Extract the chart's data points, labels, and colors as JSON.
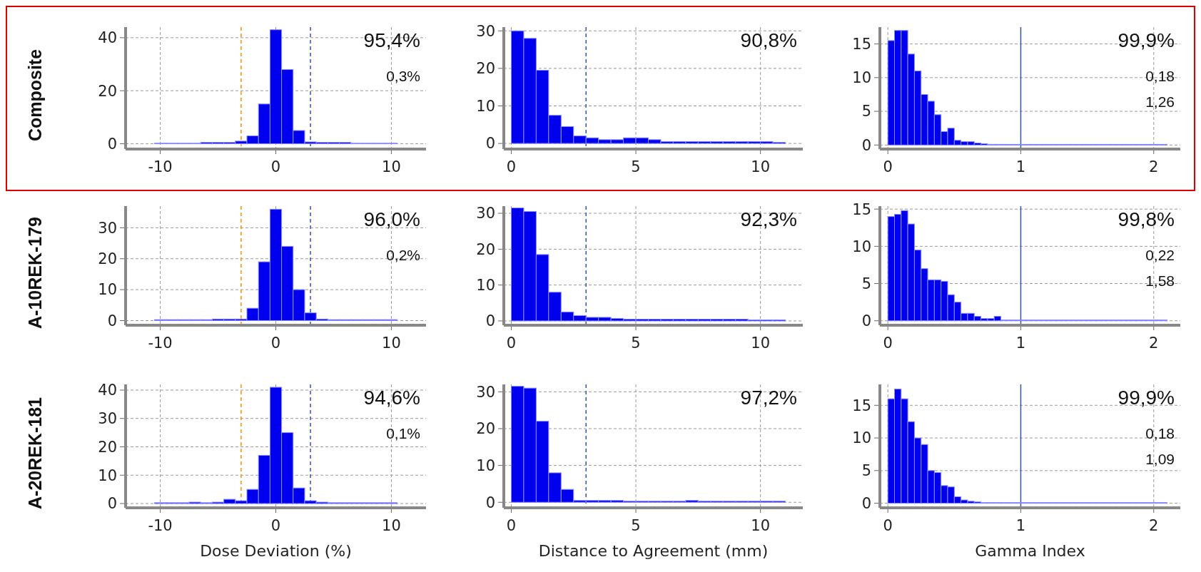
{
  "chart_data": [
    {
      "type": "histogram",
      "ylabel": "Composite",
      "bins": [
        -10.5,
        -9.5,
        -8.5,
        -7.5,
        -6.5,
        -5.5,
        -4.5,
        -3.5,
        -2.5,
        -1.5,
        -0.5,
        0.5,
        1.5,
        2.5,
        3.5,
        4.5,
        5.5,
        6.5,
        7.5,
        8.5,
        9.5,
        10.5
      ],
      "values": [
        0.2,
        0.2,
        0.2,
        0.2,
        0.5,
        0.5,
        0.5,
        1,
        3,
        15,
        43,
        28,
        5,
        0.7,
        0.5,
        0.5,
        0.5,
        0.2,
        0.2,
        0.2,
        0.2
      ],
      "color": "#0000ee",
      "xlim": [
        -13,
        13
      ],
      "xticks": [
        -10,
        0,
        10
      ],
      "ylim": [
        -2,
        44
      ],
      "yticks": [
        0,
        20,
        40
      ],
      "grid": true,
      "ref_lines": [
        {
          "axis": "x",
          "value": -3,
          "color": "#ff8c00",
          "line_style": "dashed"
        },
        {
          "axis": "x",
          "value": 3,
          "color": "#3355aa",
          "line_style": "dashed"
        }
      ],
      "annotations": [
        "95,4%",
        "0,3%"
      ]
    },
    {
      "type": "histogram",
      "bins": [
        0,
        0.5,
        1,
        1.5,
        2,
        2.5,
        3,
        3.5,
        4,
        4.5,
        5,
        5.5,
        6,
        6.5,
        7,
        7.5,
        8,
        8.5,
        9,
        9.5,
        10,
        10.5,
        11
      ],
      "values": [
        30,
        28,
        19.5,
        7.5,
        4.5,
        2,
        1.5,
        1,
        1,
        1.5,
        1.5,
        1,
        0.5,
        0.5,
        0.5,
        0.5,
        0.5,
        0.5,
        0.5,
        0.5,
        0.5,
        0.3
      ],
      "color": "#0000ee",
      "xlim": [
        -0.3,
        11.7
      ],
      "xticks": [
        0,
        5,
        10
      ],
      "ylim": [
        -1.5,
        31
      ],
      "yticks": [
        0,
        10,
        20,
        30
      ],
      "grid": true,
      "ref_lines": [
        {
          "axis": "x",
          "value": 3,
          "color": "#3355aa",
          "line_style": "dashed"
        }
      ],
      "annotations": [
        "90,8%"
      ]
    },
    {
      "type": "histogram",
      "bins": [
        0,
        0.05,
        0.1,
        0.15,
        0.2,
        0.25,
        0.3,
        0.35,
        0.4,
        0.45,
        0.5,
        0.55,
        0.6,
        0.65,
        0.7,
        0.75,
        0.8,
        0.85,
        2.1
      ],
      "values": [
        15.5,
        17,
        17,
        13.5,
        11,
        7.5,
        6.5,
        4.5,
        2,
        2.5,
        0.7,
        0.5,
        0.5,
        0.3,
        0.2,
        0.1,
        0.1,
        0.1
      ],
      "color": "#0000ee",
      "xlim": [
        -0.06,
        2.2
      ],
      "xticks": [
        0,
        1,
        2
      ],
      "ylim": [
        -0.6,
        17.5
      ],
      "yticks": [
        0,
        5,
        10,
        15
      ],
      "grid": true,
      "ref_lines": [
        {
          "axis": "x",
          "value": 1,
          "color": "#3355aa",
          "line_style": "solid"
        }
      ],
      "annotations": [
        "99,9%",
        "0,18",
        "1,26"
      ]
    },
    {
      "type": "histogram",
      "ylabel": "A-10REK-179",
      "bins": [
        -10.5,
        -9.5,
        -8.5,
        -7.5,
        -6.5,
        -5.5,
        -4.5,
        -3.5,
        -2.5,
        -1.5,
        -0.5,
        0.5,
        1.5,
        2.5,
        3.5,
        4.5,
        5.5,
        6.5,
        7.5,
        8.5,
        9.5,
        10.5
      ],
      "values": [
        0.3,
        0.3,
        0.3,
        0.3,
        0.3,
        0.5,
        0.5,
        0.5,
        4,
        19,
        36,
        24,
        10,
        2.5,
        0.5,
        0.3,
        0.3,
        0.3,
        0.3,
        0.3,
        0.3
      ],
      "color": "#0000ee",
      "xlim": [
        -13,
        13
      ],
      "xticks": [
        -10,
        0,
        10
      ],
      "ylim": [
        -1.5,
        37
      ],
      "yticks": [
        0,
        10,
        20,
        30
      ],
      "grid": true,
      "ref_lines": [
        {
          "axis": "x",
          "value": -3,
          "color": "#ff8c00",
          "line_style": "dashed"
        },
        {
          "axis": "x",
          "value": 3,
          "color": "#3355aa",
          "line_style": "dashed"
        }
      ],
      "annotations": [
        "96,0%",
        "0,2%"
      ]
    },
    {
      "type": "histogram",
      "bins": [
        0,
        0.5,
        1,
        1.5,
        2,
        2.5,
        3,
        3.5,
        4,
        4.5,
        5,
        5.5,
        6,
        6.5,
        7,
        7.5,
        8,
        8.5,
        9,
        9.5,
        10,
        10.5,
        11
      ],
      "values": [
        31.5,
        30.5,
        18.5,
        8,
        2.5,
        1.5,
        1,
        1,
        0.7,
        0.5,
        0.5,
        0.5,
        0.5,
        0.5,
        0.5,
        0.5,
        0.5,
        0.5,
        0.5,
        0.3,
        0.3,
        0.3
      ],
      "color": "#0000ee",
      "xlim": [
        -0.3,
        11.7
      ],
      "xticks": [
        0,
        5,
        10
      ],
      "ylim": [
        -1.2,
        32
      ],
      "yticks": [
        0,
        10,
        20,
        30
      ],
      "grid": true,
      "ref_lines": [
        {
          "axis": "x",
          "value": 3,
          "color": "#3355aa",
          "line_style": "dashed"
        }
      ],
      "annotations": [
        "92,3%"
      ]
    },
    {
      "type": "histogram",
      "bins": [
        0,
        0.05,
        0.1,
        0.15,
        0.2,
        0.25,
        0.3,
        0.35,
        0.4,
        0.45,
        0.5,
        0.55,
        0.6,
        0.65,
        0.7,
        0.75,
        0.8,
        0.85,
        2.1
      ],
      "values": [
        14,
        14.3,
        14.8,
        13,
        9.5,
        7,
        5.5,
        5.5,
        5.3,
        3.5,
        2.5,
        1,
        1,
        0.6,
        0.3,
        0.3,
        0.6,
        0.1
      ],
      "color": "#0000ee",
      "xlim": [
        -0.06,
        2.2
      ],
      "xticks": [
        0,
        1,
        2
      ],
      "ylim": [
        -0.6,
        15.4
      ],
      "yticks": [
        0,
        5,
        10,
        15
      ],
      "grid": true,
      "ref_lines": [
        {
          "axis": "x",
          "value": 1,
          "color": "#3355aa",
          "line_style": "solid"
        }
      ],
      "annotations": [
        "99,8%",
        "0,22",
        "1,58"
      ]
    },
    {
      "type": "histogram",
      "ylabel": "A-20REK-181",
      "xlabel": "Dose Deviation (%)",
      "bins": [
        -10.5,
        -9.5,
        -8.5,
        -7.5,
        -6.5,
        -5.5,
        -4.5,
        -3.5,
        -2.5,
        -1.5,
        -0.5,
        0.5,
        1.5,
        2.5,
        3.5,
        4.5,
        5.5,
        6.5,
        7.5,
        8.5,
        9.5,
        10.5
      ],
      "values": [
        0.3,
        0.3,
        0.3,
        0.5,
        0.3,
        0.5,
        1.5,
        1,
        5,
        17,
        41,
        25,
        5.5,
        1,
        0.5,
        0.3,
        0.3,
        0.3,
        0.3,
        0.3,
        0.3
      ],
      "color": "#0000ee",
      "xlim": [
        -13,
        13
      ],
      "xticks": [
        -10,
        0,
        10
      ],
      "ylim": [
        -1.5,
        42
      ],
      "yticks": [
        0,
        10,
        20,
        30,
        40
      ],
      "grid": true,
      "ref_lines": [
        {
          "axis": "x",
          "value": -3,
          "color": "#ff8c00",
          "line_style": "dashed"
        },
        {
          "axis": "x",
          "value": 3,
          "color": "#3355aa",
          "line_style": "dashed"
        }
      ],
      "annotations": [
        "94,6%",
        "0,1%"
      ]
    },
    {
      "type": "histogram",
      "xlabel": "Distance to Agreement (mm)",
      "bins": [
        0,
        0.5,
        1,
        1.5,
        2,
        2.5,
        3,
        3.5,
        4,
        4.5,
        5,
        5.5,
        6,
        6.5,
        7,
        7.5,
        8,
        8.5,
        9,
        9.5,
        10,
        10.5,
        11
      ],
      "values": [
        31.5,
        31,
        22,
        8,
        3.5,
        0.5,
        0.5,
        0.5,
        0.5,
        0.3,
        0.3,
        0.3,
        0.3,
        0.3,
        0.5,
        0.3,
        0.3,
        0.3,
        0.3,
        0.3,
        0.3,
        0.3
      ],
      "color": "#0000ee",
      "xlim": [
        -0.3,
        11.7
      ],
      "xticks": [
        0,
        5,
        10
      ],
      "ylim": [
        -1.5,
        32
      ],
      "yticks": [
        0,
        10,
        20,
        30
      ],
      "grid": true,
      "ref_lines": [
        {
          "axis": "x",
          "value": 3,
          "color": "#3355aa",
          "line_style": "dashed"
        }
      ],
      "annotations": [
        "97,2%"
      ]
    },
    {
      "type": "histogram",
      "xlabel": "Gamma Index",
      "bins": [
        0,
        0.05,
        0.1,
        0.15,
        0.2,
        0.25,
        0.3,
        0.35,
        0.4,
        0.45,
        0.5,
        0.55,
        0.6,
        0.65,
        0.7,
        0.75,
        0.8,
        0.85,
        2.1
      ],
      "values": [
        16,
        17.5,
        16,
        12.5,
        10,
        9,
        5,
        4.7,
        2.7,
        2.5,
        1,
        0.5,
        0.3,
        0.2,
        0.1,
        0.1,
        0.1,
        0.1
      ],
      "color": "#0000ee",
      "xlim": [
        -0.06,
        2.2
      ],
      "xticks": [
        0,
        1,
        2
      ],
      "ylim": [
        -0.7,
        18.2
      ],
      "yticks": [
        0,
        5,
        10,
        15
      ],
      "grid": true,
      "ref_lines": [
        {
          "axis": "x",
          "value": 1,
          "color": "#3355aa",
          "line_style": "solid"
        }
      ],
      "annotations": [
        "99,9%",
        "0,18",
        "1,09"
      ]
    }
  ]
}
